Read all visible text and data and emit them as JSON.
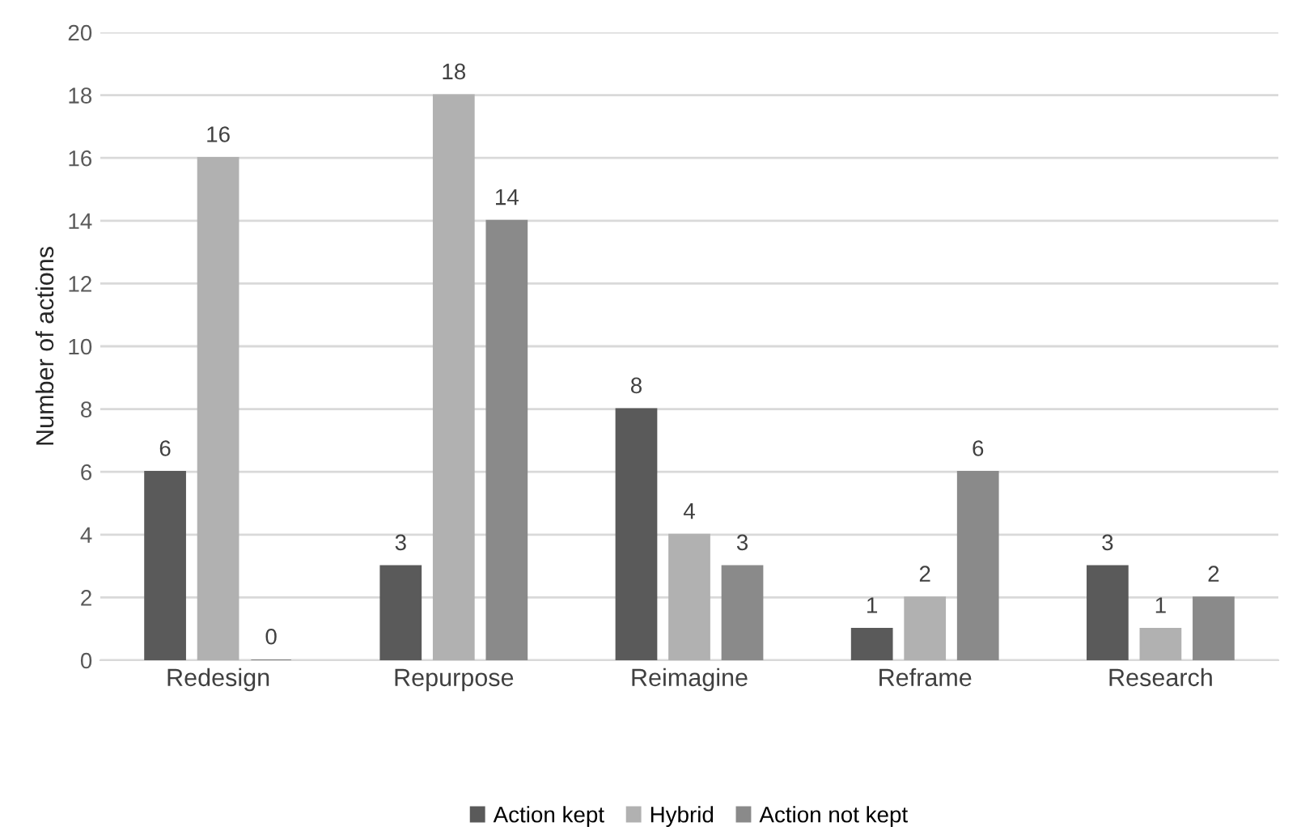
{
  "chart_data": {
    "type": "bar",
    "ylabel": "Number of actions",
    "categories": [
      "Redesign",
      "Repurpose",
      "Reimagine",
      "Reframe",
      "Research"
    ],
    "series": [
      {
        "name": "Action kept",
        "color": "#5a5a5a",
        "values": [
          6,
          3,
          8,
          1,
          3
        ]
      },
      {
        "name": "Hybrid",
        "color": "#b1b1b1",
        "values": [
          16,
          18,
          4,
          2,
          1
        ]
      },
      {
        "name": "Action not kept",
        "color": "#8a8a8a",
        "values": [
          0,
          14,
          3,
          6,
          2
        ]
      }
    ],
    "ylim": [
      0,
      20
    ],
    "yticks": [
      0,
      2,
      4,
      6,
      8,
      10,
      12,
      14,
      16,
      18,
      20
    ],
    "grid": "y",
    "legend": "bottom",
    "data_labels": true
  }
}
